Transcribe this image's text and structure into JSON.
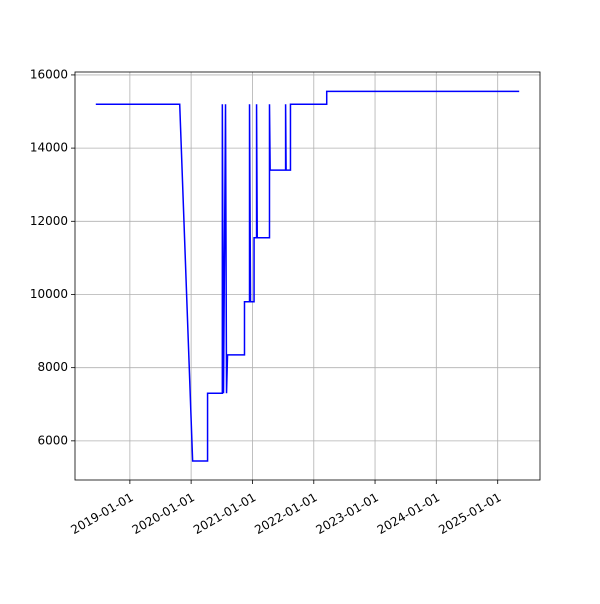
{
  "chart_data": {
    "type": "line",
    "color": "#0000ff",
    "grid": true,
    "x": [
      "2018-06-12",
      "2019-10-25",
      "2020-01-10",
      "2020-04-08",
      "2020-04-08",
      "2020-07-05",
      "2020-07-05",
      "2020-07-12",
      "2020-07-24",
      "2020-07-30",
      "2020-08-05",
      "2020-11-14",
      "2020-11-14",
      "2020-12-14",
      "2020-12-14",
      "2020-12-20",
      "2021-01-10",
      "2021-01-10",
      "2021-01-25",
      "2021-01-25",
      "2021-01-29",
      "2021-04-12",
      "2021-04-12",
      "2021-04-16",
      "2021-07-17",
      "2021-07-17",
      "2021-07-20",
      "2021-08-15",
      "2021-08-15",
      "2022-03-19",
      "2022-03-19",
      "2025-05-09"
    ],
    "values": [
      15200,
      15200,
      5450,
      5450,
      7300,
      7300,
      15200,
      7300,
      15200,
      7300,
      8350,
      8350,
      9800,
      9800,
      15200,
      9800,
      9800,
      11550,
      11550,
      15200,
      11550,
      11550,
      15200,
      13400,
      13400,
      15200,
      13400,
      13400,
      15200,
      15200,
      15550,
      15550
    ],
    "xlim": [
      "2018-02-08",
      "2025-09-10"
    ],
    "xticks": [
      "2019-01-01",
      "2020-01-01",
      "2021-01-01",
      "2022-01-01",
      "2023-01-01",
      "2024-01-01",
      "2025-01-01"
    ],
    "ylim": [
      4930,
      16080
    ],
    "yticks": [
      6000,
      8000,
      10000,
      12000,
      14000,
      16000
    ]
  }
}
